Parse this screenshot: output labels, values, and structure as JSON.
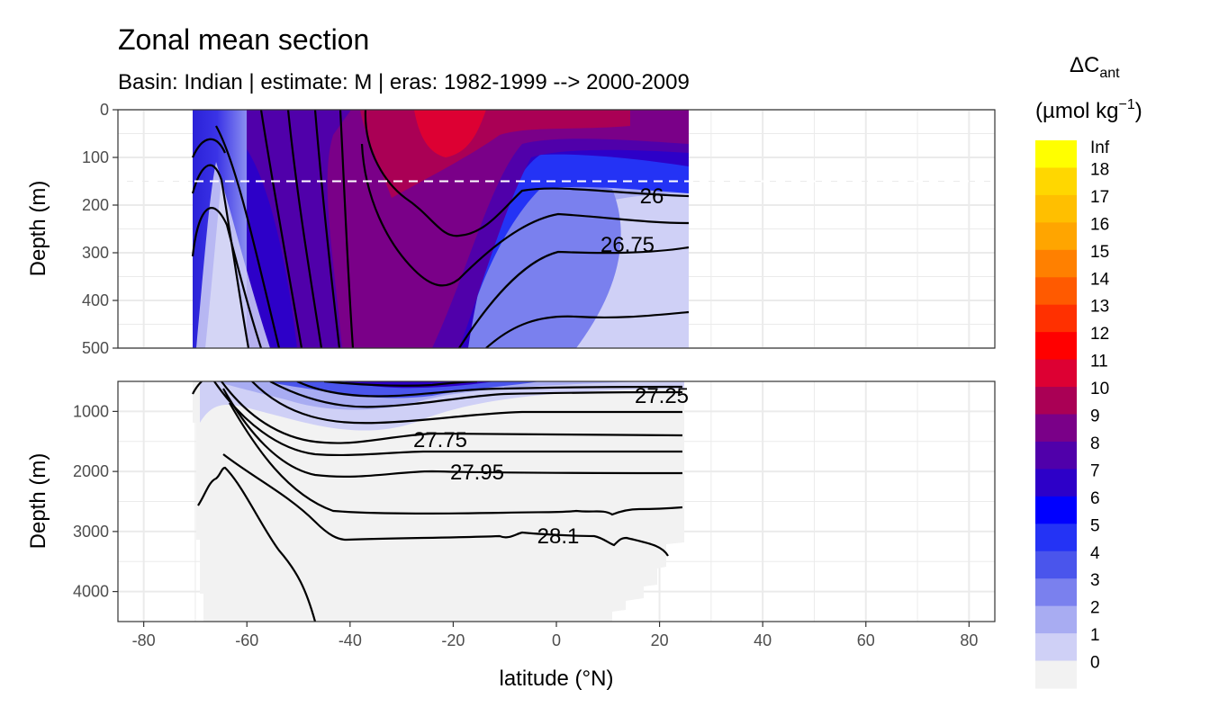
{
  "chart_data": {
    "type": "heatmap",
    "title": "Zonal mean section",
    "subtitle": "Basin: Indian | estimate: M  | eras: 1982-1999 --> 2000-2009",
    "xlabel": "latitude (°N)",
    "ylabel_top": "Depth (m)",
    "ylabel_bottom": "Depth (m)",
    "x_ticks": [
      "-80",
      "-60",
      "-40",
      "-20",
      "0",
      "20",
      "40",
      "60",
      "80"
    ],
    "xlim": [
      -85,
      85
    ],
    "top_panel": {
      "ylim": [
        0,
        500
      ],
      "y_ticks": [
        "0",
        "100",
        "200",
        "300",
        "400",
        "500"
      ],
      "reference_depth": 150
    },
    "bottom_panel": {
      "ylim": [
        500,
        4500
      ],
      "y_ticks": [
        "1000",
        "2000",
        "3000",
        "4000"
      ]
    },
    "data_extent": {
      "lat_min": -70,
      "lat_max": 25
    },
    "density_contours_top": [
      {
        "label": "26",
        "lat": 16,
        "depth": 187
      },
      {
        "label": "26.75",
        "lat": 15,
        "depth": 285
      }
    ],
    "density_contours_bottom": [
      {
        "label": "27.25",
        "lat": 20,
        "depth": 720
      },
      {
        "label": "27.75",
        "lat": -23,
        "depth": 1450
      },
      {
        "label": "27.95",
        "lat": -15,
        "depth": 2000
      },
      {
        "label": "28.1",
        "lat": 0,
        "depth": 3090
      }
    ],
    "colorbar": {
      "title": "ΔC",
      "title_sub": "ant",
      "unit": "(µmol kg",
      "unit_sup": "−1",
      "unit_close": ")",
      "labels": [
        "Inf",
        "18",
        "17",
        "16",
        "15",
        "14",
        "13",
        "12",
        "11",
        "10",
        "9",
        "8",
        "7",
        "6",
        "5",
        "4",
        "3",
        "2",
        "1",
        "0"
      ],
      "colors": [
        "#ffff00",
        "#ffd700",
        "#ffbf00",
        "#ffa500",
        "#ff8000",
        "#ff5a00",
        "#ff3000",
        "#ff0000",
        "#dd0033",
        "#aa0055",
        "#7a0088",
        "#5000aa",
        "#2d00c8",
        "#0000ff",
        "#2433f5",
        "#4a55ec",
        "#7a80ee",
        "#a8acf2",
        "#cfd0f6",
        "#f2f2f2"
      ]
    }
  }
}
